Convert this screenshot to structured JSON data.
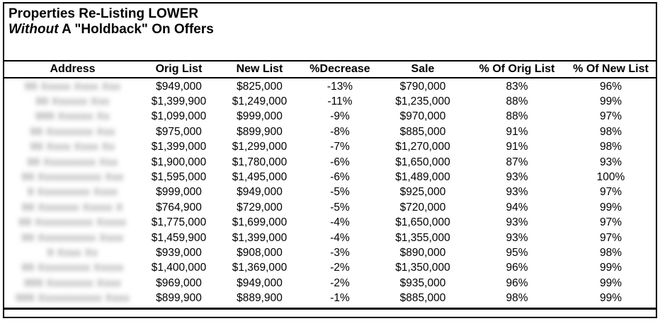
{
  "title": {
    "line1": "Properties Re-Listing LOWER",
    "line2_italic": "Without",
    "line2_rest": " A \"Holdback\" On Offers"
  },
  "colors": {
    "border": "#000000",
    "text": "#000000",
    "background": "#ffffff",
    "redacted_smudge": "#6f6f6f"
  },
  "table": {
    "columns": {
      "address": "Address",
      "orig_list": "Orig List",
      "new_list": "New List",
      "decrease": "%Decrease",
      "sale": "Sale",
      "pct_of_orig": "% Of Orig List",
      "pct_of_new": "% Of New List"
    },
    "rows": [
      {
        "address_redacted": "99 Xxxxx Xxxx Xxx",
        "orig_list": "$949,000",
        "new_list": "$825,000",
        "decrease": "-13%",
        "sale": "$790,000",
        "pct_of_orig": "83%",
        "pct_of_new": "96%"
      },
      {
        "address_redacted": "99 Xxxxxx Xxx",
        "orig_list": "$1,399,900",
        "new_list": "$1,249,000",
        "decrease": "-11%",
        "sale": "$1,235,000",
        "pct_of_orig": "88%",
        "pct_of_new": "99%"
      },
      {
        "address_redacted": "999 Xxxxxx Xx",
        "orig_list": "$1,099,000",
        "new_list": "$999,000",
        "decrease": "-9%",
        "sale": "$970,000",
        "pct_of_orig": "88%",
        "pct_of_new": "97%"
      },
      {
        "address_redacted": "99 Xxxxxxxx Xxx",
        "orig_list": "$975,000",
        "new_list": "$899,900",
        "decrease": "-8%",
        "sale": "$885,000",
        "pct_of_orig": "91%",
        "pct_of_new": "98%"
      },
      {
        "address_redacted": "99 Xxxx Xxxx Xx",
        "orig_list": "$1,399,000",
        "new_list": "$1,299,000",
        "decrease": "-7%",
        "sale": "$1,270,000",
        "pct_of_orig": "91%",
        "pct_of_new": "98%"
      },
      {
        "address_redacted": "99 Xxxxxxxxx Xxx",
        "orig_list": "$1,900,000",
        "new_list": "$1,780,000",
        "decrease": "-6%",
        "sale": "$1,650,000",
        "pct_of_orig": "87%",
        "pct_of_new": "93%"
      },
      {
        "address_redacted": "99 Xxxxxxxxxxx Xxx",
        "orig_list": "$1,595,000",
        "new_list": "$1,495,000",
        "decrease": "-6%",
        "sale": "$1,489,000",
        "pct_of_orig": "93%",
        "pct_of_new": "100%"
      },
      {
        "address_redacted": "9 Xxxxxxxxx Xxxx",
        "orig_list": "$999,000",
        "new_list": "$949,000",
        "decrease": "-5%",
        "sale": "$925,000",
        "pct_of_orig": "93%",
        "pct_of_new": "97%"
      },
      {
        "address_redacted": "99 Xxxxxxx Xxxxx X",
        "orig_list": "$764,900",
        "new_list": "$729,000",
        "decrease": "-5%",
        "sale": "$720,000",
        "pct_of_orig": "94%",
        "pct_of_new": "99%"
      },
      {
        "address_redacted": "99 Xxxxxxxxxx Xxxxx",
        "orig_list": "$1,775,000",
        "new_list": "$1,699,000",
        "decrease": "-4%",
        "sale": "$1,650,000",
        "pct_of_orig": "93%",
        "pct_of_new": "97%"
      },
      {
        "address_redacted": "99 Xxxxxxxxxx Xxxx",
        "orig_list": "$1,459,900",
        "new_list": "$1,399,000",
        "decrease": "-4%",
        "sale": "$1,355,000",
        "pct_of_orig": "93%",
        "pct_of_new": "97%"
      },
      {
        "address_redacted": "9 Xxxx Xx",
        "orig_list": "$939,000",
        "new_list": "$908,000",
        "decrease": "-3%",
        "sale": "$890,000",
        "pct_of_orig": "95%",
        "pct_of_new": "98%"
      },
      {
        "address_redacted": "99 Xxxxxxxxx Xxxxx",
        "orig_list": "$1,400,000",
        "new_list": "$1,369,000",
        "decrease": "-2%",
        "sale": "$1,350,000",
        "pct_of_orig": "96%",
        "pct_of_new": "99%"
      },
      {
        "address_redacted": "999 Xxxxxxxx Xxxx",
        "orig_list": "$969,000",
        "new_list": "$949,000",
        "decrease": "-2%",
        "sale": "$935,000",
        "pct_of_orig": "96%",
        "pct_of_new": "99%"
      },
      {
        "address_redacted": "999 Xxxxxxxxxxx Xxxx",
        "orig_list": "$899,900",
        "new_list": "$889,900",
        "decrease": "-1%",
        "sale": "$885,000",
        "pct_of_orig": "98%",
        "pct_of_new": "99%"
      }
    ]
  }
}
